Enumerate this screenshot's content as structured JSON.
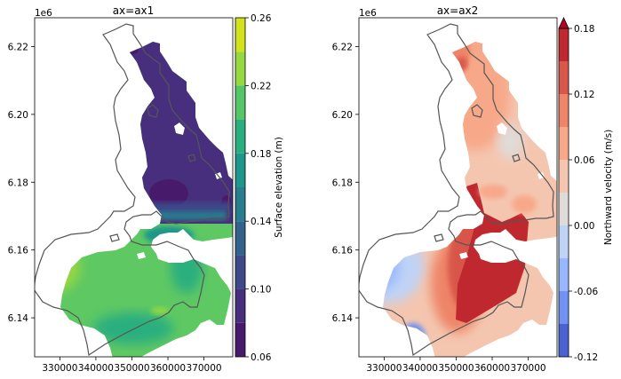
{
  "chart_data": [
    {
      "type": "heatmap",
      "title": "ax=ax1",
      "offset_label": "1e6",
      "xticks": [
        "330000",
        "340000",
        "350000",
        "360000",
        "370000"
      ],
      "xtick_values": [
        330000,
        340000,
        350000,
        360000,
        370000
      ],
      "xlim": [
        323000,
        378000
      ],
      "yticks": [
        "6.14",
        "6.16",
        "6.18",
        "6.20",
        "6.22"
      ],
      "ytick_values": [
        6.14,
        6.16,
        6.18,
        6.2,
        6.22
      ],
      "ylim": [
        6.1285,
        6.2285
      ],
      "colormap": "viridis",
      "colorbar": {
        "label": "Surface elevation (m)",
        "ticks": [
          "0.06",
          "0.10",
          "0.14",
          "0.18",
          "0.22",
          "0.26"
        ],
        "tick_values": [
          0.06,
          0.1,
          0.14,
          0.18,
          0.22,
          0.26
        ],
        "levels": [
          0.06,
          0.08,
          0.1,
          0.12,
          0.14,
          0.16,
          0.18,
          0.2,
          0.22,
          0.24,
          0.26
        ],
        "colors": [
          "#481a6c",
          "#472f7d",
          "#3e4989",
          "#33638d",
          "#287d8e",
          "#1f968b",
          "#29af7f",
          "#55c667",
          "#95d840",
          "#d2e21b"
        ],
        "extend": "neither"
      },
      "field_description": [
        {
          "region": "northern basin",
          "value": 0.09
        },
        {
          "region": "narrows",
          "value": 0.13
        },
        {
          "region": "east of southern basin",
          "value": 0.15
        },
        {
          "region": "southern basin",
          "value": 0.19
        },
        {
          "region": "western edge of southern basin",
          "value": 0.23
        }
      ]
    },
    {
      "type": "heatmap",
      "title": "ax=ax2",
      "offset_label": "1e6",
      "xticks": [
        "330000",
        "340000",
        "350000",
        "360000",
        "370000"
      ],
      "xtick_values": [
        330000,
        340000,
        350000,
        360000,
        370000
      ],
      "xlim": [
        323000,
        378000
      ],
      "yticks": [
        "6.14",
        "6.16",
        "6.18",
        "6.20",
        "6.22"
      ],
      "ytick_values": [
        6.14,
        6.16,
        6.18,
        6.2,
        6.22
      ],
      "ylim": [
        6.1285,
        6.2285
      ],
      "colormap": "coolwarm",
      "colorbar": {
        "label": "Northward velocity (m/s)",
        "ticks": [
          "-0.12",
          "-0.06",
          "0.00",
          "0.06",
          "0.12",
          "0.18"
        ],
        "tick_values": [
          -0.12,
          -0.06,
          0.0,
          0.06,
          0.12,
          0.18
        ],
        "levels": [
          -0.12,
          -0.09,
          -0.06,
          -0.03,
          0.0,
          0.03,
          0.06,
          0.09,
          0.12,
          0.15,
          0.18
        ],
        "colors": [
          "#4a63d3",
          "#6f92f3",
          "#97b8ff",
          "#bfd3f6",
          "#dfdbd9",
          "#f4c6af",
          "#f7a889",
          "#ee8468",
          "#d8564a",
          "#c0282f"
        ],
        "extend": "max",
        "extend_color": "#b40426"
      },
      "field_description": [
        {
          "region": "southwest basin",
          "value": -0.06
        },
        {
          "region": "central southern basin",
          "value": 0.08
        },
        {
          "region": "southeast channel and narrows",
          "value": 0.2
        },
        {
          "region": "northern basin",
          "value": 0.05
        },
        {
          "region": "northern tip",
          "value": 0.11
        }
      ]
    }
  ]
}
